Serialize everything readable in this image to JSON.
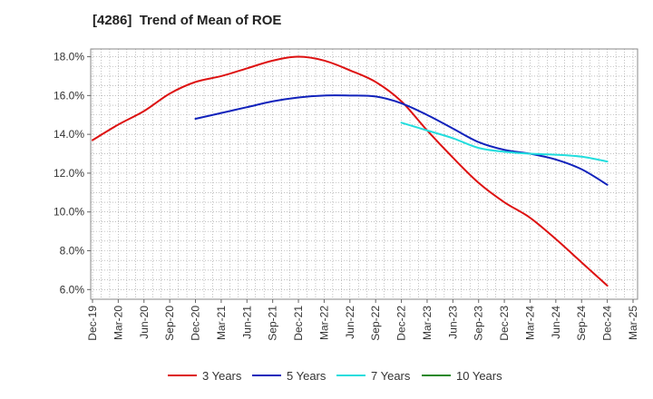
{
  "chart_data": {
    "type": "line",
    "title": "[4286]  Trend of Mean of ROE",
    "xlabel": "",
    "ylabel": "",
    "x_ticks": [
      "Dec-19",
      "Mar-20",
      "Jun-20",
      "Sep-20",
      "Dec-20",
      "Mar-21",
      "Jun-21",
      "Sep-21",
      "Dec-21",
      "Mar-22",
      "Jun-22",
      "Sep-22",
      "Dec-22",
      "Mar-23",
      "Jun-23",
      "Sep-23",
      "Dec-23",
      "Mar-24",
      "Jun-24",
      "Sep-24",
      "Dec-24",
      "Mar-25"
    ],
    "y_ticks": [
      "6.0%",
      "8.0%",
      "10.0%",
      "12.0%",
      "14.0%",
      "16.0%",
      "18.0%"
    ],
    "ylim": [
      5.5,
      18.4
    ],
    "grid": true,
    "legend_position": "bottom",
    "series": [
      {
        "name": "3 Years",
        "color": "#dd1111",
        "x": [
          "Dec-19",
          "Mar-20",
          "Jun-20",
          "Sep-20",
          "Dec-20",
          "Mar-21",
          "Jun-21",
          "Sep-21",
          "Dec-21",
          "Mar-22",
          "Jun-22",
          "Sep-22",
          "Dec-22",
          "Mar-23",
          "Jun-23",
          "Sep-23",
          "Dec-23",
          "Mar-24",
          "Jun-24",
          "Sep-24",
          "Dec-24"
        ],
        "values": [
          13.7,
          14.5,
          15.2,
          16.1,
          16.7,
          17.0,
          17.4,
          17.8,
          18.0,
          17.8,
          17.3,
          16.7,
          15.7,
          14.2,
          12.8,
          11.5,
          10.5,
          9.7,
          8.6,
          7.4,
          6.2
        ]
      },
      {
        "name": "5 Years",
        "color": "#1122bb",
        "x": [
          "Dec-20",
          "Mar-21",
          "Jun-21",
          "Sep-21",
          "Dec-21",
          "Mar-22",
          "Jun-22",
          "Sep-22",
          "Dec-22",
          "Mar-23",
          "Jun-23",
          "Sep-23",
          "Dec-23",
          "Mar-24",
          "Jun-24",
          "Sep-24",
          "Dec-24"
        ],
        "values": [
          14.8,
          15.1,
          15.4,
          15.7,
          15.9,
          16.0,
          16.0,
          15.95,
          15.6,
          15.0,
          14.3,
          13.6,
          13.2,
          13.0,
          12.7,
          12.2,
          11.4
        ]
      },
      {
        "name": "7 Years",
        "color": "#22dddd",
        "x": [
          "Dec-22",
          "Mar-23",
          "Jun-23",
          "Sep-23",
          "Dec-23",
          "Mar-24",
          "Jun-24",
          "Sep-24",
          "Dec-24"
        ],
        "values": [
          14.6,
          14.2,
          13.8,
          13.3,
          13.1,
          13.0,
          12.95,
          12.85,
          12.6
        ]
      },
      {
        "name": "10 Years",
        "color": "#228822",
        "x": [],
        "values": []
      }
    ]
  }
}
